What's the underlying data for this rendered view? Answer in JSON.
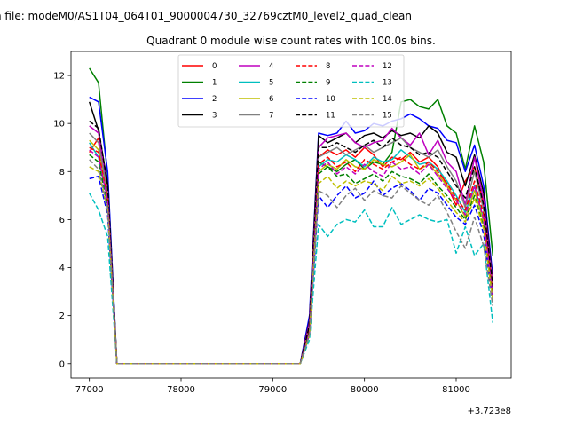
{
  "chart_data": {
    "type": "line",
    "suptitle": "n file: modeM0/AS1T04_064T01_9000004730_32769cztM0_level2_quad_clean",
    "title": "Quadrant 0 module wise count rates with 100.0s bins.",
    "xlabel": "",
    "ylabel": "",
    "x_offset_label": "+3.723e8",
    "xlim": [
      76800,
      81600
    ],
    "ylim": [
      -0.6,
      13.0
    ],
    "xticks": [
      77000,
      78000,
      79000,
      80000,
      81000
    ],
    "xtick_labels": [
      "77000",
      "78000",
      "79000",
      "80000",
      "81000"
    ],
    "yticks": [
      0,
      2,
      4,
      6,
      8,
      10,
      12
    ],
    "ytick_labels": [
      "0",
      "2",
      "4",
      "6",
      "8",
      "10",
      "12"
    ],
    "x": [
      77000,
      77100,
      77200,
      77300,
      77400,
      77500,
      77600,
      77700,
      77800,
      77900,
      78000,
      78100,
      78200,
      78300,
      78400,
      78500,
      78600,
      78700,
      78800,
      78900,
      79000,
      79100,
      79200,
      79300,
      79400,
      79500,
      79600,
      79700,
      79800,
      79900,
      80000,
      80100,
      80200,
      80300,
      80400,
      80500,
      80600,
      80700,
      80800,
      80900,
      81000,
      81100,
      81200,
      81300,
      81400
    ],
    "legend_position": "upper center",
    "series": [
      {
        "name": "0",
        "color": "#ff0000",
        "dash": "solid",
        "values": [
          8.8,
          9.4,
          7.0,
          0,
          0,
          0,
          0,
          0,
          0,
          0,
          0,
          0,
          0,
          0,
          0,
          0,
          0,
          0,
          0,
          0,
          0,
          0,
          0,
          0,
          1.4,
          8.6,
          8.9,
          8.7,
          8.9,
          8.6,
          9.0,
          8.7,
          8.2,
          8.6,
          8.5,
          8.8,
          8.4,
          8.6,
          8.2,
          7.4,
          6.6,
          7.6,
          8.2,
          6.6,
          3.0
        ]
      },
      {
        "name": "1",
        "color": "#008000",
        "dash": "solid",
        "values": [
          12.3,
          11.7,
          7.8,
          0,
          0,
          0,
          0,
          0,
          0,
          0,
          0,
          0,
          0,
          0,
          0,
          0,
          0,
          0,
          0,
          0,
          0,
          0,
          0,
          0,
          1.6,
          8.4,
          8.2,
          8.0,
          8.3,
          8.5,
          8.1,
          8.4,
          8.3,
          8.8,
          10.9,
          11.0,
          10.7,
          10.6,
          11.0,
          9.9,
          9.6,
          8.1,
          9.9,
          8.4,
          4.5
        ]
      },
      {
        "name": "2",
        "color": "#0000ff",
        "dash": "solid",
        "values": [
          11.1,
          10.9,
          8.0,
          0,
          0,
          0,
          0,
          0,
          0,
          0,
          0,
          0,
          0,
          0,
          0,
          0,
          0,
          0,
          0,
          0,
          0,
          0,
          0,
          0,
          2.0,
          9.6,
          9.5,
          9.6,
          10.1,
          9.6,
          9.7,
          10.0,
          9.9,
          10.1,
          10.2,
          10.4,
          10.2,
          9.9,
          9.8,
          9.3,
          9.2,
          8.0,
          9.1,
          7.4,
          3.6
        ]
      },
      {
        "name": "3",
        "color": "#000000",
        "dash": "solid",
        "values": [
          10.9,
          9.7,
          7.5,
          0,
          0,
          0,
          0,
          0,
          0,
          0,
          0,
          0,
          0,
          0,
          0,
          0,
          0,
          0,
          0,
          0,
          0,
          0,
          0,
          0,
          1.8,
          9.5,
          9.2,
          9.4,
          9.6,
          9.2,
          9.5,
          9.6,
          9.4,
          9.7,
          9.5,
          9.6,
          9.4,
          9.9,
          9.6,
          8.8,
          8.6,
          7.4,
          8.7,
          7.1,
          3.4
        ]
      },
      {
        "name": "4",
        "color": "#bf00bf",
        "dash": "solid",
        "values": [
          9.9,
          9.6,
          7.2,
          0,
          0,
          0,
          0,
          0,
          0,
          0,
          0,
          0,
          0,
          0,
          0,
          0,
          0,
          0,
          0,
          0,
          0,
          0,
          0,
          0,
          1.7,
          9.0,
          9.4,
          9.5,
          9.6,
          9.2,
          9.0,
          9.2,
          9.3,
          9.8,
          9.4,
          9.1,
          9.6,
          8.7,
          9.3,
          8.4,
          8.0,
          6.6,
          8.6,
          6.8,
          3.3
        ]
      },
      {
        "name": "5",
        "color": "#00bfbf",
        "dash": "solid",
        "values": [
          9.2,
          8.6,
          6.8,
          0,
          0,
          0,
          0,
          0,
          0,
          0,
          0,
          0,
          0,
          0,
          0,
          0,
          0,
          0,
          0,
          0,
          0,
          0,
          0,
          0,
          1.4,
          8.2,
          8.5,
          8.4,
          8.7,
          8.5,
          8.2,
          8.6,
          8.4,
          8.5,
          8.9,
          8.6,
          8.3,
          8.4,
          8.1,
          7.6,
          7.0,
          6.3,
          7.4,
          6.0,
          2.9
        ]
      },
      {
        "name": "6",
        "color": "#bfbf00",
        "dash": "solid",
        "values": [
          9.3,
          8.9,
          7.0,
          0,
          0,
          0,
          0,
          0,
          0,
          0,
          0,
          0,
          0,
          0,
          0,
          0,
          0,
          0,
          0,
          0,
          0,
          0,
          0,
          0,
          1.3,
          8.0,
          8.3,
          8.1,
          8.5,
          8.2,
          8.1,
          8.5,
          8.3,
          8.2,
          8.4,
          8.7,
          8.1,
          8.3,
          7.9,
          7.4,
          6.8,
          6.1,
          7.2,
          5.9,
          2.8
        ]
      },
      {
        "name": "7",
        "color": "#808080",
        "dash": "solid",
        "values": [
          9.6,
          9.2,
          7.1,
          0,
          0,
          0,
          0,
          0,
          0,
          0,
          0,
          0,
          0,
          0,
          0,
          0,
          0,
          0,
          0,
          0,
          0,
          0,
          0,
          0,
          1.5,
          8.6,
          8.8,
          9.0,
          8.7,
          8.9,
          9.1,
          8.8,
          9.0,
          9.2,
          9.4,
          9.0,
          8.8,
          8.6,
          8.9,
          8.2,
          7.6,
          6.5,
          8.0,
          6.4,
          3.1
        ]
      },
      {
        "name": "8",
        "color": "#ff0000",
        "dash": "dashed",
        "values": [
          9.0,
          8.8,
          6.9,
          0,
          0,
          0,
          0,
          0,
          0,
          0,
          0,
          0,
          0,
          0,
          0,
          0,
          0,
          0,
          0,
          0,
          0,
          0,
          0,
          0,
          1.4,
          8.3,
          8.6,
          8.2,
          8.4,
          8.0,
          8.5,
          8.3,
          8.1,
          8.4,
          8.6,
          8.3,
          8.1,
          8.4,
          8.0,
          7.5,
          6.9,
          6.4,
          7.6,
          6.2,
          2.9
        ]
      },
      {
        "name": "9",
        "color": "#008000",
        "dash": "dashed",
        "values": [
          8.7,
          8.4,
          6.6,
          0,
          0,
          0,
          0,
          0,
          0,
          0,
          0,
          0,
          0,
          0,
          0,
          0,
          0,
          0,
          0,
          0,
          0,
          0,
          0,
          0,
          1.3,
          7.9,
          8.2,
          7.8,
          7.9,
          7.5,
          7.7,
          7.9,
          7.6,
          8.0,
          7.8,
          7.7,
          7.5,
          7.9,
          7.4,
          7.0,
          6.5,
          6.0,
          7.0,
          5.7,
          2.7
        ]
      },
      {
        "name": "10",
        "color": "#0000ff",
        "dash": "dashed",
        "values": [
          7.7,
          7.8,
          6.2,
          0,
          0,
          0,
          0,
          0,
          0,
          0,
          0,
          0,
          0,
          0,
          0,
          0,
          0,
          0,
          0,
          0,
          0,
          0,
          0,
          0,
          1.2,
          7.0,
          6.5,
          7.0,
          7.4,
          6.9,
          7.1,
          7.6,
          7.0,
          7.3,
          7.5,
          7.2,
          6.8,
          7.3,
          7.1,
          6.6,
          6.1,
          5.8,
          6.6,
          5.4,
          2.6
        ]
      },
      {
        "name": "11",
        "color": "#000000",
        "dash": "dashed",
        "values": [
          10.1,
          9.8,
          7.4,
          0,
          0,
          0,
          0,
          0,
          0,
          0,
          0,
          0,
          0,
          0,
          0,
          0,
          0,
          0,
          0,
          0,
          0,
          0,
          0,
          0,
          1.6,
          9.0,
          9.0,
          9.2,
          9.0,
          8.8,
          9.1,
          9.3,
          9.0,
          9.4,
          9.1,
          9.0,
          8.7,
          8.8,
          8.6,
          8.0,
          7.4,
          6.9,
          8.2,
          6.6,
          3.2
        ]
      },
      {
        "name": "12",
        "color": "#bf00bf",
        "dash": "dashed",
        "values": [
          8.9,
          8.6,
          6.8,
          0,
          0,
          0,
          0,
          0,
          0,
          0,
          0,
          0,
          0,
          0,
          0,
          0,
          0,
          0,
          0,
          0,
          0,
          0,
          0,
          0,
          1.3,
          8.1,
          8.4,
          7.9,
          8.2,
          7.9,
          8.3,
          8.0,
          7.8,
          8.4,
          8.1,
          8.2,
          7.9,
          8.3,
          7.8,
          7.3,
          6.8,
          6.2,
          7.4,
          6.0,
          2.8
        ]
      },
      {
        "name": "13",
        "color": "#00bfbf",
        "dash": "dashed",
        "values": [
          7.1,
          6.4,
          5.3,
          0,
          0,
          0,
          0,
          0,
          0,
          0,
          0,
          0,
          0,
          0,
          0,
          0,
          0,
          0,
          0,
          0,
          0,
          0,
          0,
          0,
          1.0,
          5.8,
          5.3,
          5.8,
          6.0,
          5.9,
          6.4,
          5.7,
          5.7,
          6.5,
          5.8,
          6.0,
          6.2,
          6.0,
          5.9,
          6.0,
          4.6,
          5.7,
          4.5,
          5.0,
          1.7
        ]
      },
      {
        "name": "14",
        "color": "#bfbf00",
        "dash": "dashed",
        "values": [
          8.2,
          8.0,
          6.4,
          0,
          0,
          0,
          0,
          0,
          0,
          0,
          0,
          0,
          0,
          0,
          0,
          0,
          0,
          0,
          0,
          0,
          0,
          0,
          0,
          0,
          1.2,
          7.5,
          7.8,
          7.3,
          7.6,
          7.4,
          7.6,
          7.5,
          7.2,
          7.8,
          7.5,
          7.6,
          7.4,
          7.7,
          7.3,
          6.8,
          6.3,
          5.9,
          6.9,
          5.6,
          2.6
        ]
      },
      {
        "name": "15",
        "color": "#808080",
        "dash": "dashed",
        "values": [
          8.5,
          8.1,
          6.5,
          0,
          0,
          0,
          0,
          0,
          0,
          0,
          0,
          0,
          0,
          0,
          0,
          0,
          0,
          0,
          0,
          0,
          0,
          0,
          0,
          0,
          1.2,
          7.2,
          7.0,
          6.5,
          7.0,
          7.3,
          6.8,
          7.2,
          7.0,
          6.9,
          7.4,
          7.1,
          6.8,
          6.6,
          7.0,
          6.3,
          5.5,
          4.8,
          6.1,
          4.9,
          2.4
        ]
      }
    ]
  }
}
